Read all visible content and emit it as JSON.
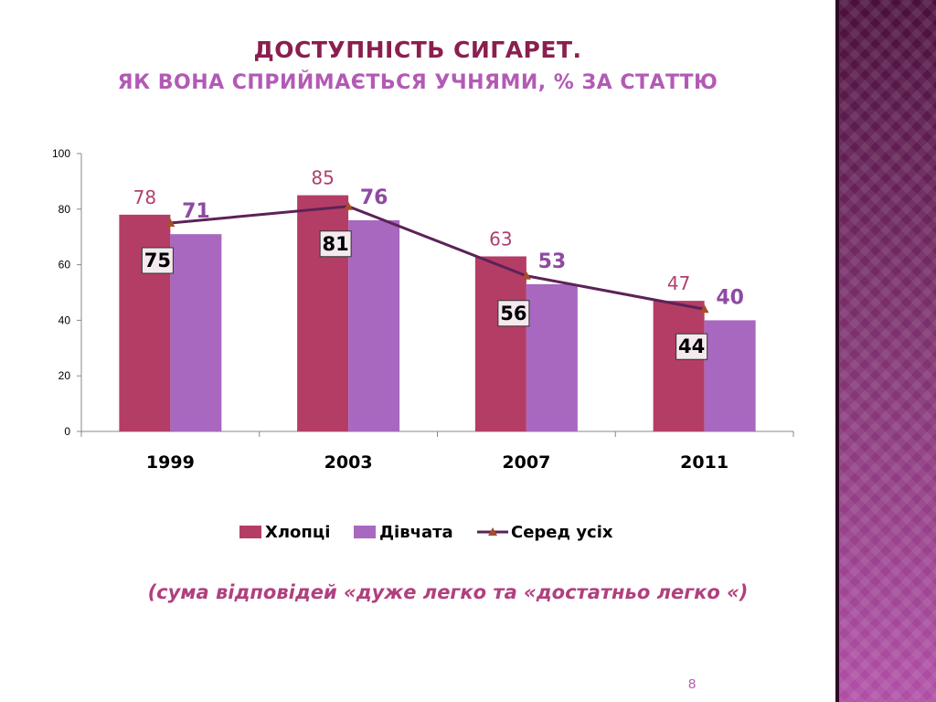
{
  "slide": {
    "title_line1": "Доступність сигарет.",
    "title_line2": "Як вона сприймається учнями, % за статтю",
    "footnote": "(сума відповідей «дуже легко та «достатньо легко «)",
    "page_number": "8"
  },
  "colors": {
    "boys": "#b43d66",
    "girls": "#a868c0",
    "average_line": "#5b2357",
    "average_marker": "#a84d2a",
    "side_panel": "#7a2f6b"
  },
  "chart_data": {
    "type": "bar",
    "categories": [
      "1999",
      "2003",
      "2007",
      "2011"
    ],
    "ylim": [
      0,
      100
    ],
    "yticks": [
      0,
      20,
      40,
      60,
      80,
      100
    ],
    "grid": false,
    "legend_position": "bottom",
    "series": [
      {
        "name": "Хлопці",
        "type": "bar",
        "values": [
          78,
          85,
          63,
          47
        ]
      },
      {
        "name": "Дівчата",
        "type": "bar",
        "values": [
          71,
          76,
          53,
          40
        ]
      },
      {
        "name": "Серед усіх",
        "type": "line",
        "values": [
          75,
          81,
          56,
          44
        ]
      }
    ]
  }
}
